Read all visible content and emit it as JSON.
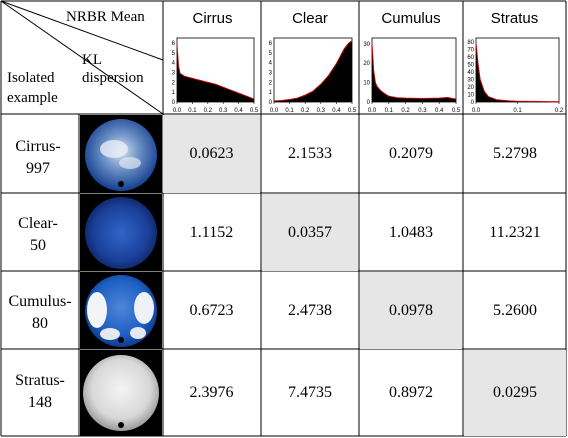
{
  "corner": {
    "top": "NRBR Mean",
    "middle_1": "KL",
    "middle_2": "dispersion",
    "bottom_1": "Isolated",
    "bottom_2": "example"
  },
  "columns": [
    "Cirrus",
    "Clear",
    "Cumulus",
    "Stratus"
  ],
  "rows": [
    {
      "label_1": "Cirrus-",
      "label_2": "997",
      "values": [
        "0.0623",
        "2.1533",
        "0.2079",
        "5.2798"
      ]
    },
    {
      "label_1": "Clear-",
      "label_2": "50",
      "values": [
        "1.1152",
        "0.0357",
        "1.0483",
        "11.2321"
      ]
    },
    {
      "label_1": "Cumulus-",
      "label_2": "80",
      "values": [
        "0.6723",
        "2.4738",
        "0.0978",
        "5.2600"
      ]
    },
    {
      "label_1": "Stratus-",
      "label_2": "148",
      "values": [
        "2.3976",
        "7.4735",
        "0.8972",
        "0.0295"
      ]
    }
  ],
  "chart_data": [
    {
      "type": "area",
      "x_ticks": [
        "0.0",
        "0.1",
        "0.2",
        "0.3",
        "0.4",
        "0.5"
      ],
      "y_ticks": [
        "0",
        "1",
        "2",
        "3",
        "4",
        "5",
        "6"
      ],
      "ylim": [
        0,
        6.5
      ],
      "x": [
        0.0,
        0.01,
        0.02,
        0.05,
        0.1,
        0.15,
        0.2,
        0.25,
        0.3,
        0.35,
        0.4,
        0.45,
        0.5
      ],
      "y": [
        5.8,
        3.6,
        2.9,
        2.6,
        2.4,
        2.2,
        2.0,
        1.8,
        1.5,
        1.2,
        0.9,
        0.6,
        0.3
      ]
    },
    {
      "type": "area",
      "x_ticks": [
        "0.0",
        "0.1",
        "0.2",
        "0.3",
        "0.4",
        "0.5"
      ],
      "y_ticks": [
        "0",
        "1",
        "2",
        "3",
        "4",
        "5",
        "6"
      ],
      "ylim": [
        0,
        6.5
      ],
      "x": [
        0.0,
        0.05,
        0.1,
        0.15,
        0.2,
        0.25,
        0.3,
        0.35,
        0.4,
        0.42,
        0.45,
        0.48,
        0.5
      ],
      "y": [
        0.1,
        0.15,
        0.25,
        0.4,
        0.7,
        1.1,
        1.8,
        2.7,
        3.9,
        4.5,
        5.4,
        6.0,
        6.2
      ]
    },
    {
      "type": "area",
      "x_ticks": [
        "0.0",
        "0.1",
        "0.2",
        "0.3",
        "0.4",
        "0.5"
      ],
      "y_ticks": [
        "0",
        "10",
        "20",
        "30"
      ],
      "ylim": [
        0,
        33
      ],
      "x": [
        0.0,
        0.01,
        0.02,
        0.03,
        0.05,
        0.08,
        0.1,
        0.15,
        0.2,
        0.3,
        0.4,
        0.45,
        0.5
      ],
      "y": [
        30,
        16,
        10,
        8,
        6,
        4,
        3,
        2.2,
        2,
        1.8,
        2,
        2.3,
        1.5
      ]
    },
    {
      "type": "area",
      "x_ticks": [
        "0.0",
        "0.1",
        "0.2"
      ],
      "y_ticks": [
        "0",
        "10",
        "20",
        "30",
        "40",
        "50",
        "60",
        "70",
        "80"
      ],
      "ylim": [
        0,
        85
      ],
      "x": [
        0.0,
        0.005,
        0.01,
        0.02,
        0.03,
        0.05,
        0.08,
        0.1,
        0.15,
        0.2
      ],
      "y": [
        78,
        50,
        30,
        14,
        7,
        3,
        1.5,
        1,
        0.6,
        0.4
      ]
    }
  ],
  "colors": {
    "shade": "#e6e6e6",
    "border": "#000000",
    "curve": "#c00000",
    "sky_blue": "#1d5fc4",
    "dark_blue": "#0d2f7a",
    "cloud": "#e6e6e6"
  }
}
